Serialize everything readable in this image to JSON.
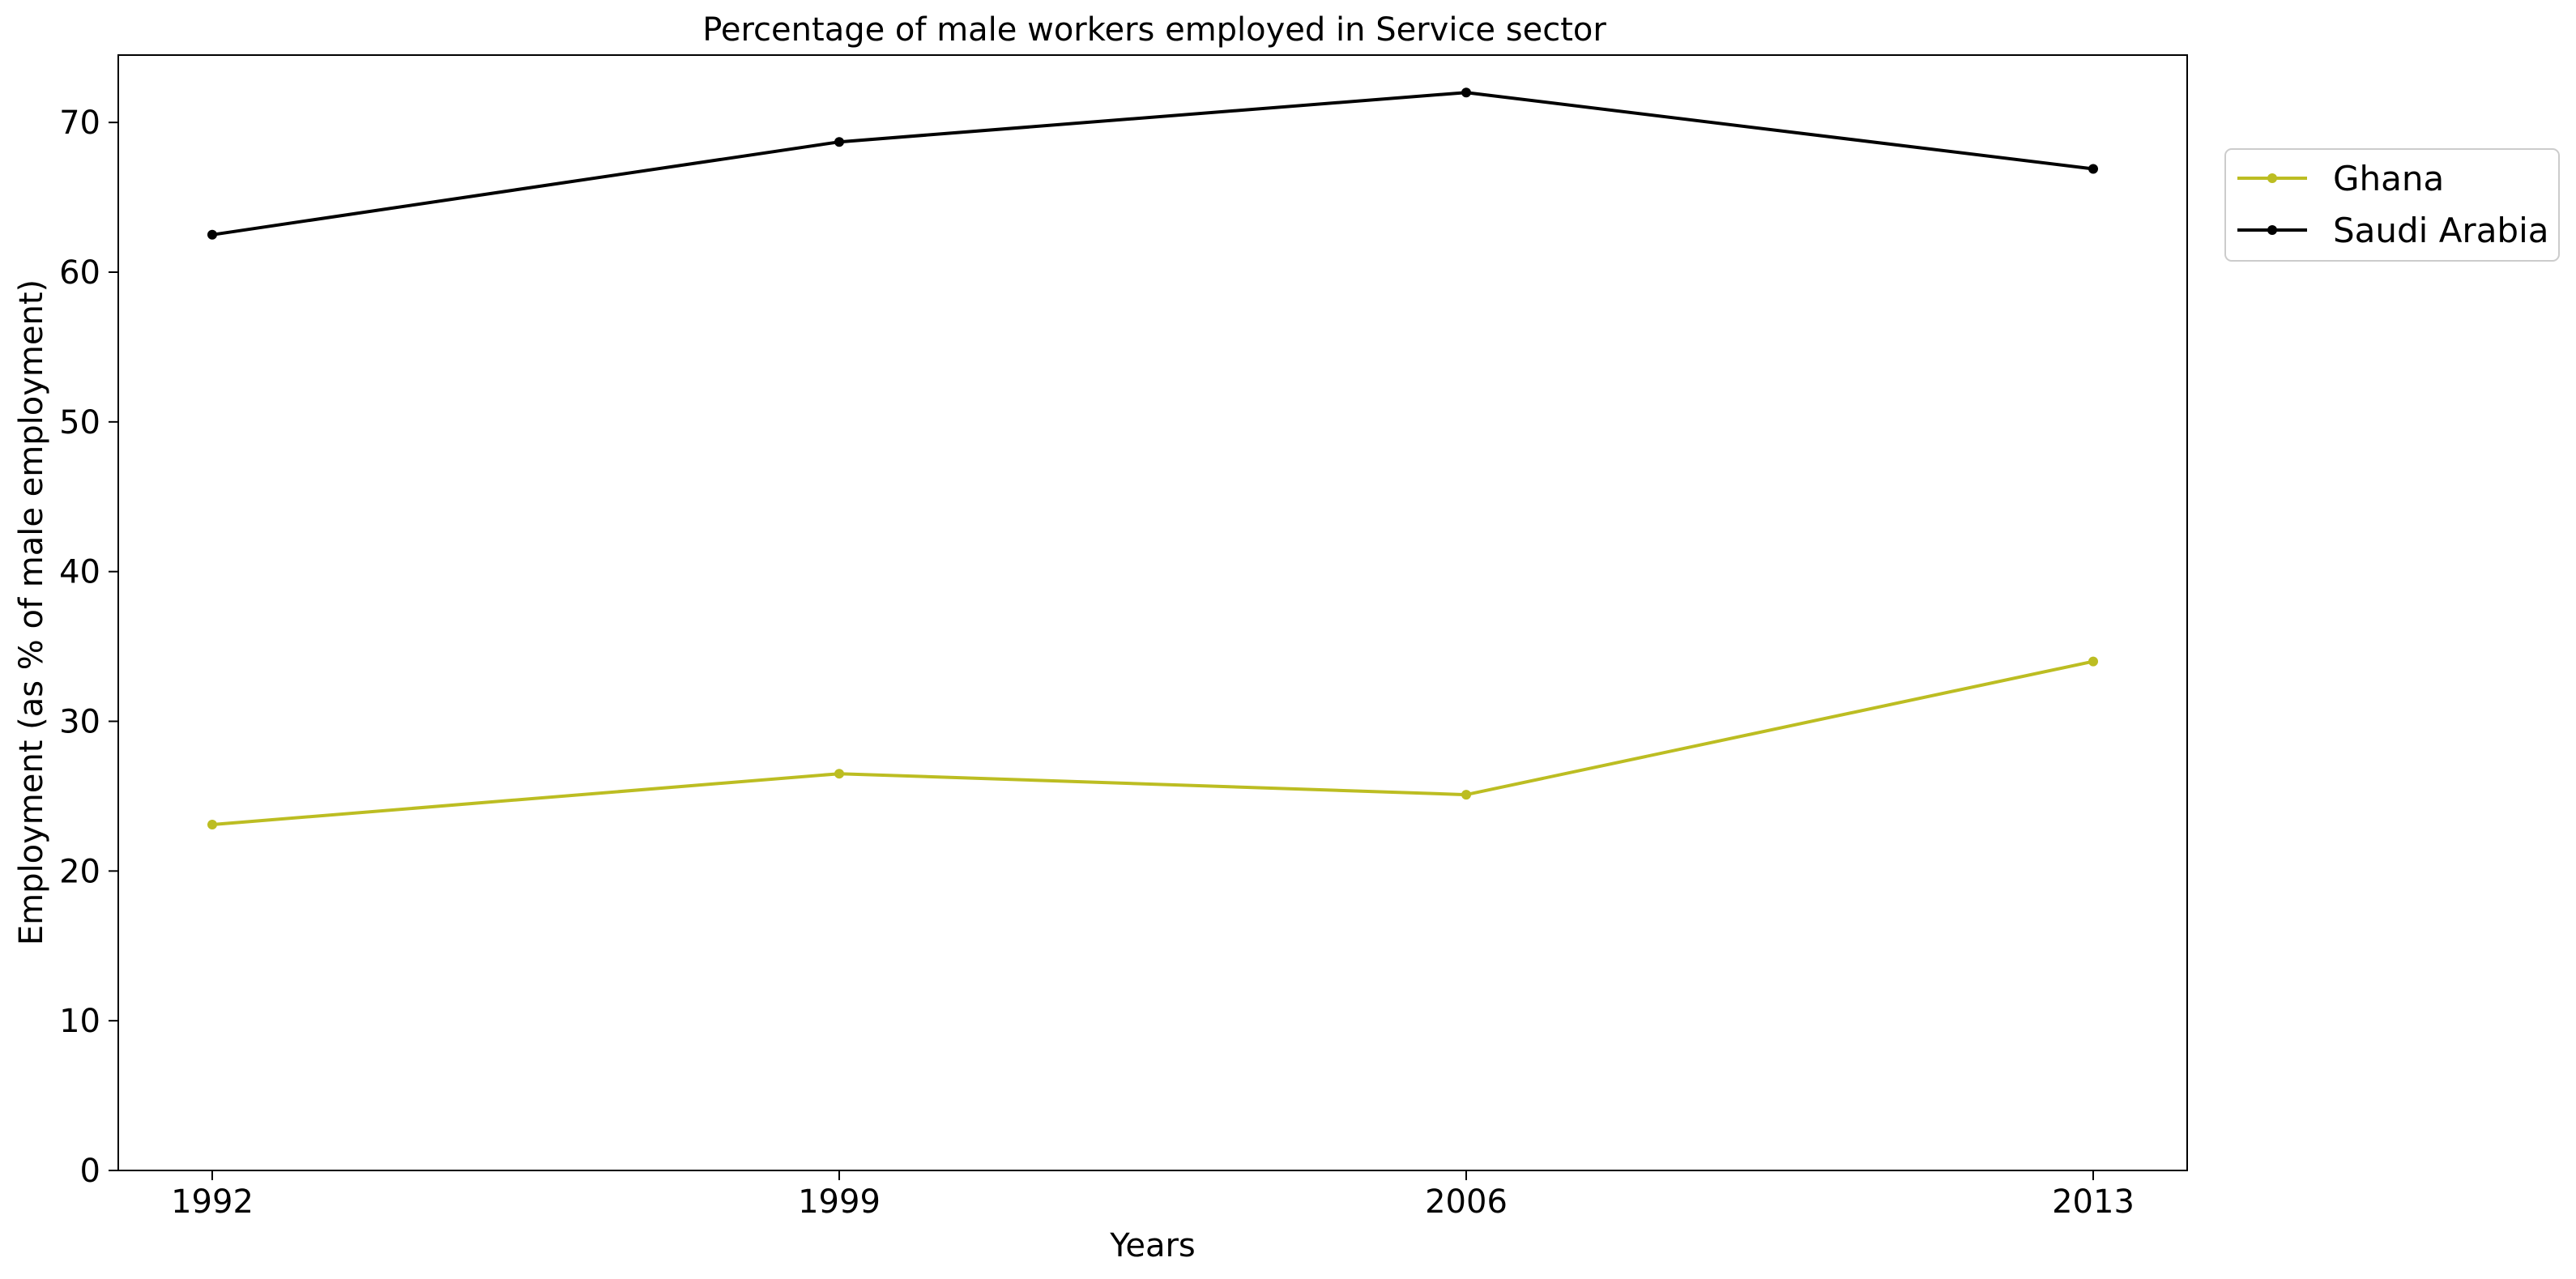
{
  "chart_data": {
    "type": "line",
    "title": "Percentage of male workers employed in Service sector",
    "xlabel": "Years",
    "ylabel": "Employment (as % of male employment)",
    "x": [
      "1992",
      "1999",
      "2006",
      "2013"
    ],
    "ylim": [
      0,
      74.5
    ],
    "yticks": [
      0,
      10,
      20,
      30,
      40,
      50,
      60,
      70
    ],
    "grid": false,
    "legend_position": "upper-right-outside",
    "series": [
      {
        "name": "Ghana",
        "color": "#bcbd22",
        "values": [
          23.1,
          26.5,
          25.1,
          34.0
        ]
      },
      {
        "name": "Saudi Arabia",
        "color": "#000000",
        "values": [
          62.5,
          68.7,
          72.0,
          66.9
        ]
      }
    ]
  }
}
